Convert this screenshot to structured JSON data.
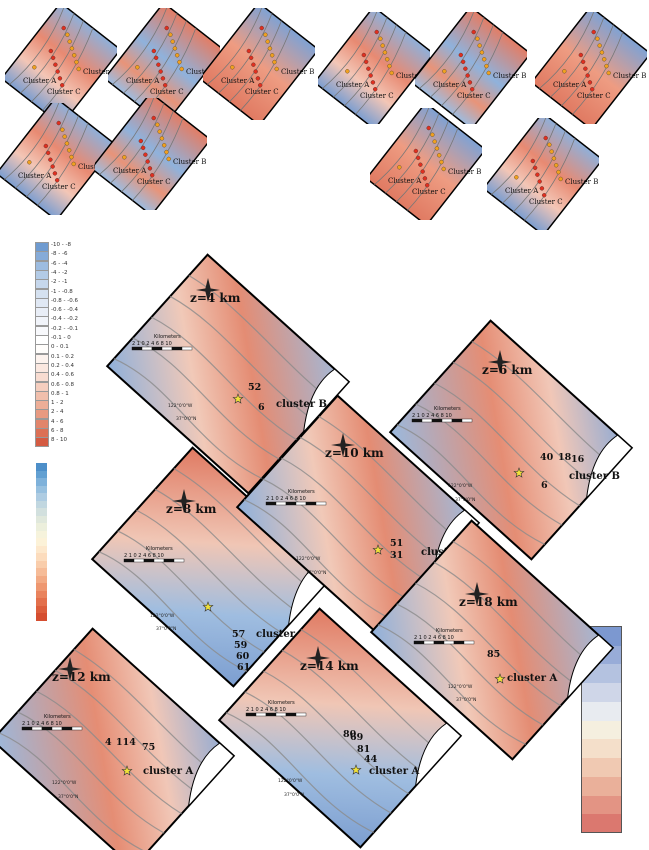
{
  "thumbnails": [
    {
      "labels": [
        "Cluster A",
        "Cluster B",
        "Cluster C"
      ]
    },
    {
      "labels": [
        "Cluster A",
        "Cluster B",
        "Cluster C"
      ]
    },
    {
      "labels": [
        "Cluster A",
        "Cluster B",
        "Cluster C"
      ]
    },
    {
      "labels": [
        "Cluster A",
        "Cluster B",
        "Cluster C"
      ]
    },
    {
      "labels": [
        "Cluster A",
        "Cluster B",
        "Cluster C"
      ]
    },
    {
      "labels": [
        "Cluster A",
        "Cluster B",
        "Cluster C"
      ]
    },
    {
      "labels": [
        "Cluster A",
        "Cluster B",
        "Cluster C"
      ]
    },
    {
      "labels": [
        "Cluster A",
        "Cluster B",
        "Cluster C"
      ]
    },
    {
      "labels": [
        "Cluster A",
        "Cluster B",
        "Cluster C"
      ]
    },
    {
      "labels": [
        "Cluster A",
        "Cluster B",
        "Cluster C"
      ]
    }
  ],
  "legend": {
    "entries": [
      {
        "label": "-10 - -8",
        "color": "#6f9bd0"
      },
      {
        "label": "-8 - -6",
        "color": "#86abd8"
      },
      {
        "label": "-6 - -4",
        "color": "#9dbce0"
      },
      {
        "label": "-4 - -2",
        "color": "#b3cbe6"
      },
      {
        "label": "-2 - -1",
        "color": "#c6d7ec"
      },
      {
        "label": "-1 - -0.8",
        "color": "#d5e1f0"
      },
      {
        "label": "-0.8 - -0.6",
        "color": "#e0e8f4"
      },
      {
        "label": "-0.6 - -0.4",
        "color": "#e9eef7"
      },
      {
        "label": "-0.4 - -0.2",
        "color": "#f1f4fa"
      },
      {
        "label": "-0.2 - -0.1",
        "color": "#f8f9fc"
      },
      {
        "label": "-0.1 - 0",
        "color": "#ffffff"
      },
      {
        "label": "0 - 0.1",
        "color": "#fffdfb"
      },
      {
        "label": "0.1 - 0.2",
        "color": "#fdf3ee"
      },
      {
        "label": "0.2 - 0.4",
        "color": "#fbe8e0"
      },
      {
        "label": "0.4 - 0.6",
        "color": "#f8dcd1"
      },
      {
        "label": "0.6 - 0.8",
        "color": "#f5cebf"
      },
      {
        "label": "0.8 - 1",
        "color": "#f1bfac"
      },
      {
        "label": "1 - 2",
        "color": "#edae97"
      },
      {
        "label": "2 - 4",
        "color": "#e89a81"
      },
      {
        "label": "4 - 6",
        "color": "#e2856b"
      },
      {
        "label": "6 - 8",
        "color": "#dc7055"
      },
      {
        "label": "8 - 10",
        "color": "#d45b42"
      }
    ],
    "swatches2": [
      "#4d8fc9",
      "#62a0d2",
      "#7eb1da",
      "#97c0df",
      "#aecce2",
      "#c1d7e0",
      "#d2e0de",
      "#e0e8dc",
      "#ecefdc",
      "#f6f3dc",
      "#fcf2d8",
      "#fde8cc",
      "#fcdcbd",
      "#f9cdab",
      "#f6bc98",
      "#f2aa84",
      "#ee9770",
      "#e9835d",
      "#e3704c",
      "#dc5e3c",
      "#d54e30"
    ],
    "bar3": [
      "#7c98d0",
      "#98acd8",
      "#b4c2e0",
      "#cfd6e8",
      "#e8ebf0",
      "#f5efdf",
      "#f4dfca",
      "#f0c9b2",
      "#eab09a",
      "#e39484",
      "#db786f"
    ]
  },
  "maps": {
    "z4": {
      "title": "z=4 km",
      "scale_title": "Kilometers",
      "scale_ticks": "2 1 0   2   4   6   8 10",
      "numbers": [
        "52",
        "6"
      ],
      "cluster": "cluster B",
      "lon": "122°0'0\"W",
      "lat": "37°0'0\"N"
    },
    "z6": {
      "title": "z=6 km",
      "scale_title": "Kilometers",
      "scale_ticks": "2 1 0   2   4   6   8 10",
      "numbers": [
        "40",
        "18",
        "16",
        "6"
      ],
      "cluster": "cluster B",
      "lon": "122°0'0\"W",
      "lat": "37°0'0\"N"
    },
    "z8": {
      "title": "z=8 km",
      "scale_title": "Kilometers",
      "scale_ticks": "2 1 0   2   4   6   8 10",
      "numbers": [
        "57",
        "59",
        "60",
        "61"
      ],
      "cluster": "cluster C",
      "lon": "122°0'0\"W",
      "lat": "37°0'0\"N"
    },
    "z10": {
      "title": "z=10 km",
      "scale_title": "Kilometers",
      "scale_ticks": "2 1 0   2   4   6   8 10",
      "numbers": [
        "51",
        "31"
      ],
      "cluster": "cluster B",
      "lon": "122°0'0\"W",
      "lat": "37°0'0\"N"
    },
    "z12": {
      "title": "z=12 km",
      "scale_title": "Kilometers",
      "scale_ticks": "2 1 0   2   4   6   8 10",
      "numbers": [
        "4",
        "114",
        "75"
      ],
      "cluster": "cluster A",
      "lon": "122°0'0\"W",
      "lat": "37°0'0\"N"
    },
    "z14": {
      "title": "z=14 km",
      "scale_title": "Kilometers",
      "scale_ticks": "2 1 0   2   4   6   8 10",
      "numbers": [
        "80",
        "69",
        "81",
        "44"
      ],
      "cluster": "cluster A",
      "lon": "122°0'0\"W",
      "lat": "37°0'0\"N"
    },
    "z18": {
      "title": "z=18 km",
      "scale_title": "Kilometers",
      "scale_ticks": "2 1 0   2   4   6   8 10",
      "numbers": [
        "85"
      ],
      "cluster": "cluster A",
      "lon": "122°0'0\"W",
      "lat": "37°0'0\"N"
    }
  },
  "colors": {
    "blue": "#7c9ed0",
    "red": "#e07a62",
    "frame": "#000000",
    "star": "#f2e23a"
  }
}
